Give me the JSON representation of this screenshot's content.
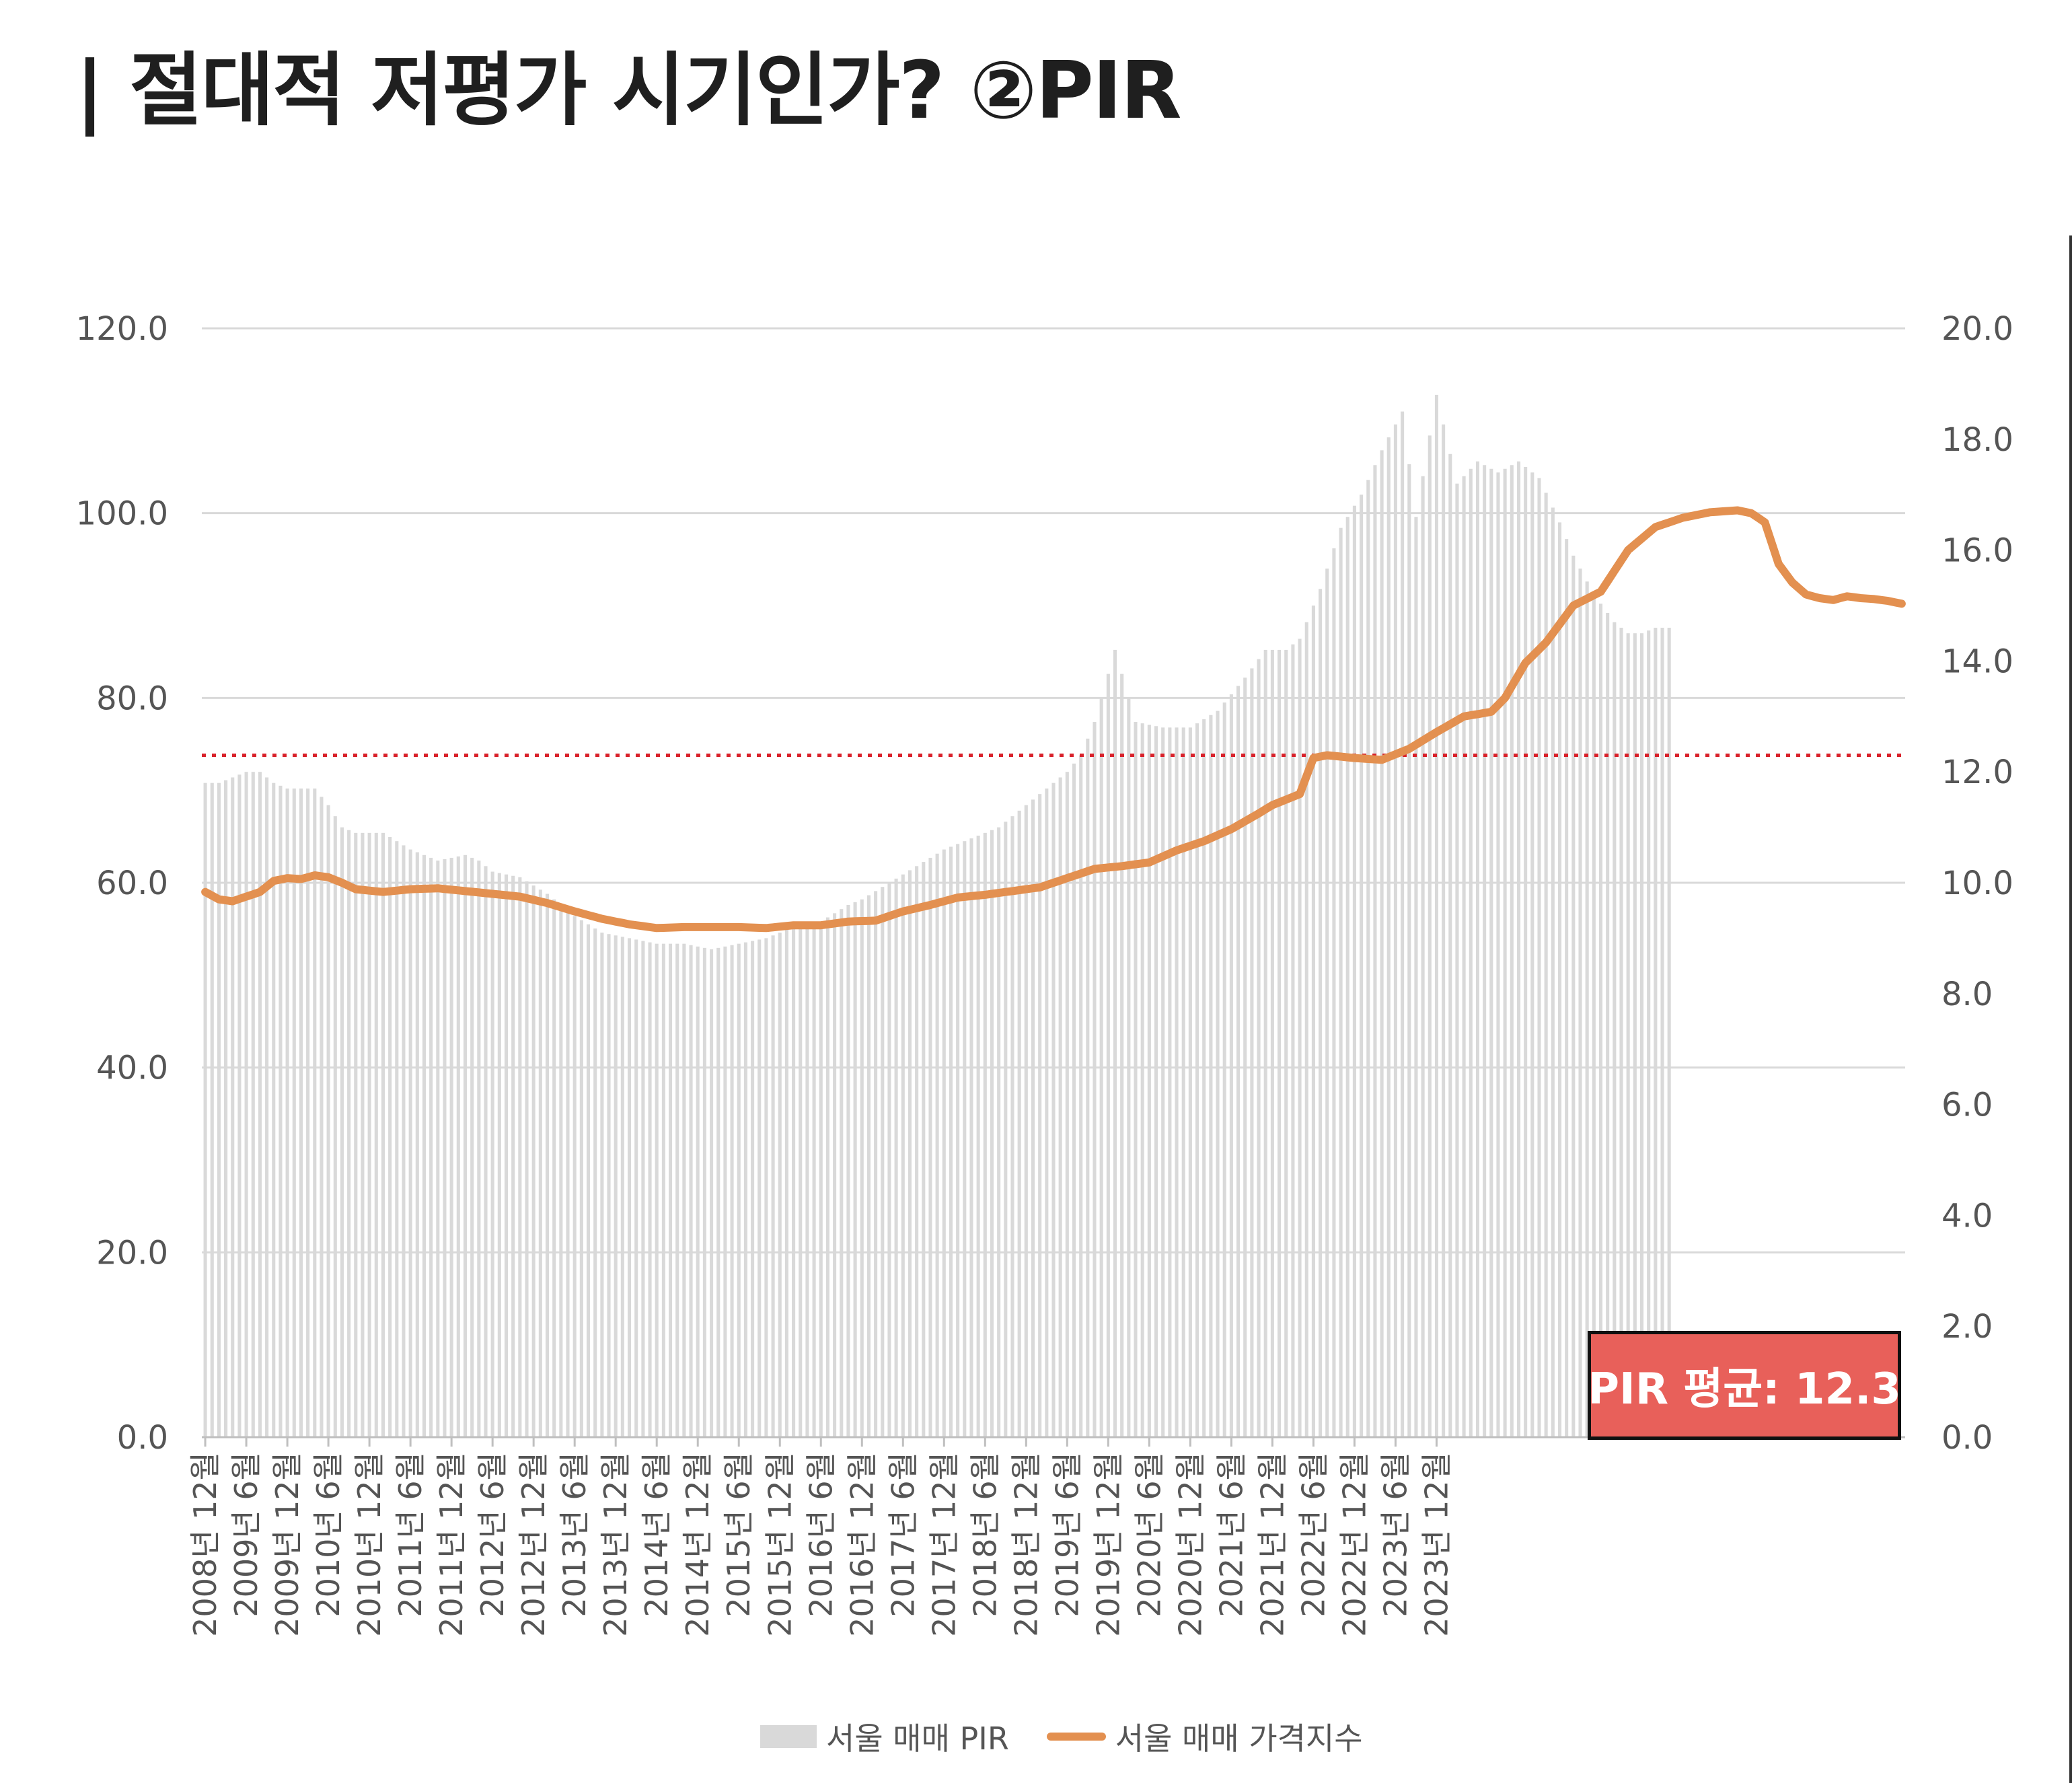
{
  "title": "| 절대적 저평가 시기인가? ②PIR",
  "avg_label": "PIR 평균: 12.3",
  "legend": {
    "bar": "서울 매매 PIR",
    "line": "서울 매매 가격지수"
  },
  "colors": {
    "bar": "#d9d9d9",
    "line": "#e39050",
    "avg_line": "#d9212a",
    "grid": "#d9d9d9",
    "avg_box": "#e8605a"
  },
  "chart_data": {
    "type": "bar",
    "x_tick_labels": [
      "2008년 12월",
      "2009년 6월",
      "2009년 12월",
      "2010년 6월",
      "2010년 12월",
      "2011년 6월",
      "2011년 12월",
      "2012년 6월",
      "2012년 12월",
      "2013년 6월",
      "2013년 12월",
      "2014년 6월",
      "2014년 12월",
      "2015년 6월",
      "2015년 12월",
      "2016년 6월",
      "2016년 12월",
      "2017년 6월",
      "2017년 12월",
      "2018년 6월",
      "2018년 12월",
      "2019년 6월",
      "2019년 12월",
      "2020년 6월",
      "2020년 12월",
      "2021년 6월",
      "2021년 12월",
      "2022년 6월",
      "2022년 12월",
      "2023년 6월",
      "2023년 12월"
    ],
    "y_left": {
      "ticks": [
        "0.0",
        "20.0",
        "40.0",
        "60.0",
        "80.0",
        "100.0",
        "120.0"
      ],
      "ylim": [
        0,
        120
      ]
    },
    "y_right": {
      "ticks": [
        "0.0",
        "2.0",
        "4.0",
        "6.0",
        "8.0",
        "10.0",
        "12.0",
        "14.0",
        "16.0",
        "18.0",
        "20.0"
      ],
      "ylim": [
        0,
        20
      ]
    },
    "pir_average": 12.3,
    "grid": true,
    "legend_position": "bottom",
    "series": [
      {
        "name": "서울 매매 PIR",
        "type": "bar",
        "axis": "right",
        "anchors": [
          [
            0,
            11.8
          ],
          [
            2,
            11.8
          ],
          [
            4,
            11.9
          ],
          [
            6,
            12.0
          ],
          [
            8,
            12.0
          ],
          [
            10,
            11.8
          ],
          [
            12,
            11.7
          ],
          [
            16,
            11.7
          ],
          [
            18,
            11.4
          ],
          [
            20,
            11.0
          ],
          [
            22,
            10.9
          ],
          [
            26,
            10.9
          ],
          [
            30,
            10.6
          ],
          [
            34,
            10.4
          ],
          [
            38,
            10.5
          ],
          [
            40,
            10.4
          ],
          [
            42,
            10.2
          ],
          [
            46,
            10.1
          ],
          [
            50,
            9.8
          ],
          [
            54,
            9.4
          ],
          [
            58,
            9.1
          ],
          [
            62,
            9.0
          ],
          [
            66,
            8.9
          ],
          [
            70,
            8.9
          ],
          [
            74,
            8.8
          ],
          [
            78,
            8.9
          ],
          [
            82,
            9.0
          ],
          [
            86,
            9.2
          ],
          [
            90,
            9.3
          ],
          [
            94,
            9.6
          ],
          [
            96,
            9.7
          ],
          [
            100,
            10.0
          ],
          [
            104,
            10.3
          ],
          [
            108,
            10.6
          ],
          [
            112,
            10.8
          ],
          [
            116,
            11.0
          ],
          [
            120,
            11.4
          ],
          [
            124,
            11.8
          ],
          [
            126,
            12.0
          ],
          [
            128,
            12.3
          ],
          [
            130,
            12.9
          ],
          [
            133,
            14.2
          ],
          [
            136,
            12.9
          ],
          [
            140,
            12.8
          ],
          [
            144,
            12.8
          ],
          [
            148,
            13.1
          ],
          [
            152,
            13.7
          ],
          [
            155,
            14.2
          ],
          [
            158,
            14.2
          ],
          [
            160,
            14.4
          ],
          [
            163,
            15.3
          ],
          [
            166,
            16.4
          ],
          [
            169,
            17.0
          ],
          [
            172,
            17.8
          ],
          [
            175,
            18.5
          ],
          [
            177,
            16.6
          ],
          [
            180,
            18.8
          ],
          [
            183,
            17.2
          ],
          [
            186,
            17.6
          ],
          [
            189,
            17.4
          ],
          [
            192,
            17.6
          ],
          [
            195,
            17.3
          ],
          [
            198,
            16.5
          ],
          [
            200,
            15.9
          ],
          [
            203,
            15.2
          ],
          [
            206,
            14.7
          ],
          [
            208,
            14.5
          ],
          [
            210,
            14.5
          ],
          [
            212,
            14.6
          ],
          [
            214,
            14.6
          ]
        ]
      },
      {
        "name": "서울 매매 가격지수",
        "type": "line",
        "axis": "left",
        "anchors": [
          [
            0,
            59.0
          ],
          [
            2,
            58.2
          ],
          [
            4,
            58.0
          ],
          [
            6,
            58.5
          ],
          [
            8,
            59.0
          ],
          [
            10,
            60.2
          ],
          [
            12,
            60.5
          ],
          [
            14,
            60.4
          ],
          [
            16,
            60.8
          ],
          [
            18,
            60.6
          ],
          [
            20,
            60.0
          ],
          [
            22,
            59.3
          ],
          [
            26,
            59.0
          ],
          [
            30,
            59.3
          ],
          [
            34,
            59.4
          ],
          [
            38,
            59.1
          ],
          [
            42,
            58.8
          ],
          [
            46,
            58.5
          ],
          [
            50,
            57.8
          ],
          [
            54,
            56.9
          ],
          [
            58,
            56.1
          ],
          [
            62,
            55.5
          ],
          [
            66,
            55.1
          ],
          [
            70,
            55.2
          ],
          [
            74,
            55.2
          ],
          [
            78,
            55.2
          ],
          [
            82,
            55.1
          ],
          [
            86,
            55.4
          ],
          [
            90,
            55.4
          ],
          [
            94,
            55.8
          ],
          [
            98,
            55.9
          ],
          [
            102,
            56.9
          ],
          [
            106,
            57.6
          ],
          [
            110,
            58.4
          ],
          [
            114,
            58.7
          ],
          [
            118,
            59.1
          ],
          [
            122,
            59.5
          ],
          [
            126,
            60.5
          ],
          [
            130,
            61.5
          ],
          [
            134,
            61.8
          ],
          [
            138,
            62.2
          ],
          [
            142,
            63.5
          ],
          [
            146,
            64.5
          ],
          [
            150,
            65.8
          ],
          [
            154,
            67.5
          ],
          [
            156,
            68.4
          ],
          [
            158,
            69.0
          ],
          [
            160,
            69.6
          ],
          [
            162,
            73.5
          ],
          [
            164,
            73.8
          ],
          [
            168,
            73.5
          ],
          [
            172,
            73.3
          ],
          [
            176,
            74.5
          ],
          [
            180,
            76.3
          ],
          [
            184,
            78.0
          ],
          [
            188,
            78.5
          ],
          [
            190,
            80.0
          ],
          [
            193,
            83.8
          ],
          [
            196,
            86.0
          ],
          [
            200,
            90.0
          ],
          [
            204,
            91.5
          ],
          [
            208,
            96.0
          ],
          [
            212,
            98.5
          ],
          [
            216,
            99.5
          ],
          [
            220,
            100.1
          ],
          [
            224,
            100.3
          ],
          [
            226,
            100.0
          ],
          [
            228,
            99.0
          ],
          [
            230,
            94.5
          ],
          [
            232,
            92.5
          ],
          [
            234,
            91.2
          ],
          [
            236,
            90.8
          ],
          [
            238,
            90.6
          ],
          [
            240,
            91.0
          ],
          [
            242,
            90.8
          ],
          [
            244,
            90.7
          ],
          [
            246,
            90.5
          ],
          [
            248,
            90.2
          ]
        ]
      }
    ]
  }
}
